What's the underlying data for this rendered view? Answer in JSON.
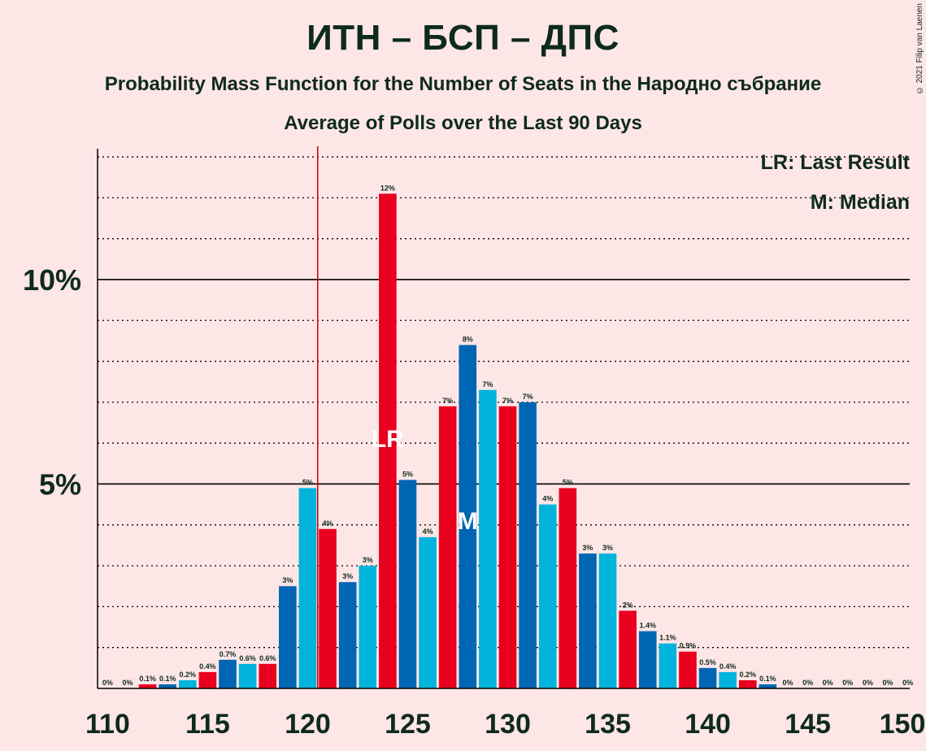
{
  "header": {
    "title": "ИТН – БСП – ДПС",
    "subtitle1": "Probability Mass Function for the Number of Seats in the Народно събрание",
    "subtitle2": "Average of Polls over the Last 90 Days",
    "copyright": "© 2021 Filip van Laenen"
  },
  "legend": {
    "last_result": "LR: Last Result",
    "median": "M: Median"
  },
  "colors": {
    "background": "#fde6e6",
    "red": "#e8001e",
    "blue": "#0065b3",
    "cyan": "#00b4dc",
    "last_result_line": "#cc0000"
  },
  "chart_data": {
    "type": "bar",
    "x": [
      110,
      111,
      112,
      113,
      114,
      115,
      116,
      117,
      118,
      119,
      120,
      121,
      122,
      123,
      124,
      125,
      126,
      127,
      128,
      129,
      130,
      131,
      132,
      133,
      134,
      135,
      136,
      137,
      138,
      139,
      140,
      141,
      142,
      143,
      144,
      145,
      146,
      147,
      148,
      149,
      150
    ],
    "values": [
      0,
      0,
      0.1,
      0.1,
      0.2,
      0.4,
      0.7,
      0.6,
      0.6,
      2.5,
      4.9,
      3.9,
      2.6,
      3.0,
      12.1,
      5.1,
      3.7,
      6.9,
      8.4,
      7.3,
      6.9,
      7.0,
      4.5,
      4.9,
      3.3,
      3.3,
      1.9,
      1.4,
      1.1,
      0.9,
      0.5,
      0.4,
      0.2,
      0.1,
      0,
      0,
      0,
      0,
      0,
      0,
      0
    ],
    "labels": [
      "0%",
      "0%",
      "0.1%",
      "0.1%",
      "0.2%",
      "0.4%",
      "0.7%",
      "0.6%",
      "0.6%",
      "3%",
      "5%",
      "4%",
      "3%",
      "3%",
      "12%",
      "5%",
      "4%",
      "7%",
      "8%",
      "7%",
      "7%",
      "7%",
      "4%",
      "5%",
      "3%",
      "3%",
      "2%",
      "1.4%",
      "1.1%",
      "0.9%",
      "0.5%",
      "0.4%",
      "0.2%",
      "0.1%",
      "0%",
      "0%",
      "0%",
      "0%",
      "0%",
      "0%",
      "0%"
    ],
    "bar_colors": [
      "red",
      "blue",
      "red",
      "blue",
      "cyan",
      "red",
      "blue",
      "cyan",
      "red",
      "blue",
      "cyan",
      "red",
      "blue",
      "cyan",
      "red",
      "blue",
      "cyan",
      "red",
      "blue",
      "cyan",
      "red",
      "blue",
      "cyan",
      "red",
      "blue",
      "cyan",
      "red",
      "blue",
      "cyan",
      "red",
      "blue",
      "cyan",
      "red",
      "blue",
      "cyan",
      "red",
      "blue",
      "cyan",
      "red",
      "blue",
      "cyan"
    ],
    "x_ticks": [
      110,
      115,
      120,
      125,
      130,
      135,
      140,
      145,
      150
    ],
    "x_tick_labels": [
      "110",
      "115",
      "120",
      "125",
      "130",
      "135",
      "140",
      "145",
      "150"
    ],
    "y_ticks": [
      5,
      10
    ],
    "y_tick_labels": [
      "5%",
      "10%"
    ],
    "ylim": [
      0,
      13.2
    ],
    "last_result": 121,
    "last_result_label": "LR",
    "median": 128,
    "median_label": "M",
    "grid": "dotted every 1%, solid at 5% and 10%"
  }
}
